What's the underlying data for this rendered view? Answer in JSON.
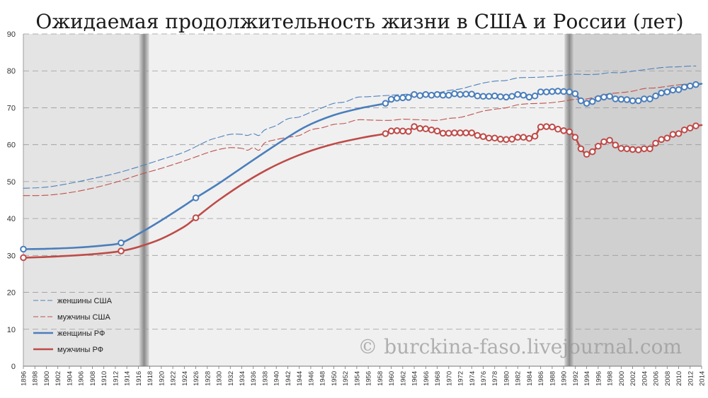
{
  "chart_data": {
    "type": "line",
    "title": "Ожидаемая продолжительность жизни в США и России (лет)",
    "ylim": [
      0,
      90
    ],
    "yticks": [
      "0",
      "10",
      "20",
      "30",
      "40",
      "50",
      "60",
      "70",
      "80",
      "90"
    ],
    "xlim": [
      1896,
      2014
    ],
    "xticks": [
      "1896",
      "1898",
      "1900",
      "1902",
      "1904",
      "1906",
      "1908",
      "1910",
      "1912",
      "1914",
      "1916",
      "1918",
      "1920",
      "1922",
      "1924",
      "1926",
      "1928",
      "1930",
      "1932",
      "1934",
      "1936",
      "1938",
      "1940",
      "1942",
      "1944",
      "1946",
      "1948",
      "1950",
      "1952",
      "1954",
      "1956",
      "1958",
      "1960",
      "1962",
      "1964",
      "1966",
      "1968",
      "1970",
      "1972",
      "1974",
      "1976",
      "1978",
      "1980",
      "1982",
      "1984",
      "1986",
      "1988",
      "1990",
      "1992",
      "1994",
      "1996",
      "1998",
      "2000",
      "2002",
      "2004",
      "2006",
      "2008",
      "2010",
      "2012",
      "2014"
    ],
    "shaded_periods": [
      {
        "from": 1896,
        "to": 1917,
        "shade": "#e4e4e4"
      },
      {
        "from": 1917,
        "to": 1991,
        "shade": "#f0f0f0"
      },
      {
        "from": 1991,
        "to": 2014,
        "shade": "#d0d0d0"
      }
    ],
    "grid": "horizontal dashed",
    "legend_position": "bottom-left",
    "series": [
      {
        "name": "женшины США",
        "color": "#4f81bd",
        "style": "dashed",
        "points": [
          [
            1896,
            48.2
          ],
          [
            1900,
            48.5
          ],
          [
            1904,
            49.5
          ],
          [
            1908,
            50.8
          ],
          [
            1912,
            52.2
          ],
          [
            1916,
            54.0
          ],
          [
            1920,
            56.0
          ],
          [
            1924,
            58.0
          ],
          [
            1928,
            61.0
          ],
          [
            1930,
            62.0
          ],
          [
            1932,
            62.8
          ],
          [
            1934,
            62.8
          ],
          [
            1935,
            62.5
          ],
          [
            1936,
            63.0
          ],
          [
            1937,
            62.5
          ],
          [
            1938,
            64.0
          ],
          [
            1940,
            65.2
          ],
          [
            1942,
            67.0
          ],
          [
            1944,
            67.5
          ],
          [
            1946,
            68.8
          ],
          [
            1948,
            70.0
          ],
          [
            1950,
            71.2
          ],
          [
            1952,
            71.6
          ],
          [
            1954,
            72.8
          ],
          [
            1956,
            73.0
          ],
          [
            1958,
            73.2
          ],
          [
            1960,
            73.4
          ],
          [
            1962,
            73.6
          ],
          [
            1964,
            73.8
          ],
          [
            1966,
            73.9
          ],
          [
            1968,
            74.0
          ],
          [
            1970,
            74.7
          ],
          [
            1972,
            75.1
          ],
          [
            1974,
            75.9
          ],
          [
            1976,
            76.7
          ],
          [
            1978,
            77.2
          ],
          [
            1980,
            77.4
          ],
          [
            1982,
            78.1
          ],
          [
            1984,
            78.2
          ],
          [
            1986,
            78.3
          ],
          [
            1988,
            78.5
          ],
          [
            1990,
            78.8
          ],
          [
            1992,
            79.1
          ],
          [
            1994,
            79.0
          ],
          [
            1996,
            79.1
          ],
          [
            1998,
            79.5
          ],
          [
            2000,
            79.5
          ],
          [
            2002,
            79.9
          ],
          [
            2004,
            80.3
          ],
          [
            2006,
            80.7
          ],
          [
            2008,
            81.0
          ],
          [
            2010,
            81.1
          ],
          [
            2012,
            81.3
          ],
          [
            2013,
            81.3
          ]
        ]
      },
      {
        "name": "мужчины США",
        "color": "#c0504d",
        "style": "dashed",
        "points": [
          [
            1896,
            46.2
          ],
          [
            1900,
            46.3
          ],
          [
            1904,
            47.0
          ],
          [
            1908,
            48.2
          ],
          [
            1912,
            49.8
          ],
          [
            1916,
            51.8
          ],
          [
            1920,
            53.6
          ],
          [
            1924,
            55.6
          ],
          [
            1928,
            57.8
          ],
          [
            1930,
            58.7
          ],
          [
            1932,
            59.2
          ],
          [
            1934,
            59.0
          ],
          [
            1935,
            58.5
          ],
          [
            1936,
            59.2
          ],
          [
            1937,
            58.5
          ],
          [
            1938,
            60.5
          ],
          [
            1940,
            61.4
          ],
          [
            1942,
            62.0
          ],
          [
            1944,
            62.5
          ],
          [
            1946,
            64.0
          ],
          [
            1948,
            64.6
          ],
          [
            1950,
            65.5
          ],
          [
            1952,
            65.8
          ],
          [
            1954,
            66.7
          ],
          [
            1956,
            66.7
          ],
          [
            1958,
            66.6
          ],
          [
            1960,
            66.6
          ],
          [
            1962,
            66.9
          ],
          [
            1964,
            66.8
          ],
          [
            1966,
            66.7
          ],
          [
            1968,
            66.6
          ],
          [
            1970,
            67.1
          ],
          [
            1972,
            67.4
          ],
          [
            1974,
            68.2
          ],
          [
            1976,
            69.1
          ],
          [
            1978,
            69.6
          ],
          [
            1980,
            70.0
          ],
          [
            1982,
            70.8
          ],
          [
            1984,
            71.1
          ],
          [
            1986,
            71.2
          ],
          [
            1988,
            71.4
          ],
          [
            1990,
            71.8
          ],
          [
            1992,
            72.3
          ],
          [
            1994,
            72.4
          ],
          [
            1996,
            73.1
          ],
          [
            1998,
            73.8
          ],
          [
            2000,
            74.1
          ],
          [
            2002,
            74.5
          ],
          [
            2004,
            75.2
          ],
          [
            2006,
            75.4
          ],
          [
            2008,
            75.8
          ],
          [
            2010,
            76.2
          ],
          [
            2012,
            76.4
          ],
          [
            2013,
            76.4
          ]
        ]
      },
      {
        "name": "женщины РФ",
        "color": "#4a7ebb",
        "style": "solid",
        "marker_years": [
          1896,
          1913,
          1926,
          1959,
          1960,
          1961,
          1962,
          1963,
          1964,
          1965,
          1966,
          1967,
          1968,
          1969,
          1970,
          1971,
          1972,
          1973,
          1974,
          1975,
          1976,
          1977,
          1978,
          1979,
          1980,
          1981,
          1982,
          1983,
          1984,
          1985,
          1986,
          1987,
          1988,
          1989,
          1990,
          1991,
          1992,
          1993,
          1994,
          1995,
          1996,
          1997,
          1998,
          1999,
          2000,
          2001,
          2002,
          2003,
          2004,
          2005,
          2006,
          2007,
          2008,
          2009,
          2010,
          2011,
          2012,
          2013
        ],
        "points": [
          [
            1896,
            31.7
          ],
          [
            1900,
            31.8
          ],
          [
            1905,
            32.1
          ],
          [
            1910,
            32.7
          ],
          [
            1913,
            33.4
          ],
          [
            1916,
            35.8
          ],
          [
            1920,
            39.5
          ],
          [
            1924,
            43.5
          ],
          [
            1926,
            45.6
          ],
          [
            1930,
            49.5
          ],
          [
            1935,
            54.8
          ],
          [
            1940,
            60.0
          ],
          [
            1945,
            64.8
          ],
          [
            1950,
            68.0
          ],
          [
            1955,
            70.0
          ],
          [
            1959,
            71.2
          ],
          [
            1960,
            72.3
          ],
          [
            1961,
            72.6
          ],
          [
            1962,
            72.7
          ],
          [
            1963,
            72.8
          ],
          [
            1964,
            73.6
          ],
          [
            1965,
            73.3
          ],
          [
            1966,
            73.6
          ],
          [
            1967,
            73.4
          ],
          [
            1968,
            73.6
          ],
          [
            1969,
            73.4
          ],
          [
            1970,
            73.4
          ],
          [
            1971,
            73.8
          ],
          [
            1972,
            73.6
          ],
          [
            1973,
            73.7
          ],
          [
            1974,
            73.7
          ],
          [
            1975,
            73.2
          ],
          [
            1976,
            73.1
          ],
          [
            1977,
            73.1
          ],
          [
            1978,
            73.2
          ],
          [
            1979,
            73.0
          ],
          [
            1980,
            72.9
          ],
          [
            1981,
            73.1
          ],
          [
            1982,
            73.6
          ],
          [
            1983,
            73.4
          ],
          [
            1984,
            72.9
          ],
          [
            1985,
            73.2
          ],
          [
            1986,
            74.3
          ],
          [
            1987,
            74.3
          ],
          [
            1988,
            74.4
          ],
          [
            1989,
            74.5
          ],
          [
            1990,
            74.4
          ],
          [
            1991,
            74.3
          ],
          [
            1992,
            73.8
          ],
          [
            1993,
            71.9
          ],
          [
            1994,
            71.2
          ],
          [
            1995,
            71.7
          ],
          [
            1996,
            72.5
          ],
          [
            1997,
            72.9
          ],
          [
            1998,
            73.1
          ],
          [
            1999,
            72.4
          ],
          [
            2000,
            72.3
          ],
          [
            2001,
            72.2
          ],
          [
            2002,
            71.9
          ],
          [
            2003,
            71.9
          ],
          [
            2004,
            72.4
          ],
          [
            2005,
            72.4
          ],
          [
            2006,
            73.2
          ],
          [
            2007,
            74.0
          ],
          [
            2008,
            74.3
          ],
          [
            2009,
            74.8
          ],
          [
            2010,
            74.9
          ],
          [
            2011,
            75.6
          ],
          [
            2012,
            75.9
          ],
          [
            2013,
            76.3
          ],
          [
            2014,
            76.5
          ]
        ]
      },
      {
        "name": "мужчины РФ",
        "color": "#be4b48",
        "style": "solid",
        "marker_years": [
          1896,
          1913,
          1926,
          1959,
          1960,
          1961,
          1962,
          1963,
          1964,
          1965,
          1966,
          1967,
          1968,
          1969,
          1970,
          1971,
          1972,
          1973,
          1974,
          1975,
          1976,
          1977,
          1978,
          1979,
          1980,
          1981,
          1982,
          1983,
          1984,
          1985,
          1986,
          1987,
          1988,
          1989,
          1990,
          1991,
          1992,
          1993,
          1994,
          1995,
          1996,
          1997,
          1998,
          1999,
          2000,
          2001,
          2002,
          2003,
          2004,
          2005,
          2006,
          2007,
          2008,
          2009,
          2010,
          2011,
          2012,
          2013
        ],
        "points": [
          [
            1896,
            29.4
          ],
          [
            1900,
            29.6
          ],
          [
            1905,
            30.0
          ],
          [
            1910,
            30.6
          ],
          [
            1913,
            31.2
          ],
          [
            1916,
            32.3
          ],
          [
            1920,
            34.5
          ],
          [
            1924,
            37.8
          ],
          [
            1926,
            40.2
          ],
          [
            1930,
            45.0
          ],
          [
            1935,
            50.2
          ],
          [
            1940,
            54.5
          ],
          [
            1945,
            57.8
          ],
          [
            1950,
            60.2
          ],
          [
            1955,
            61.9
          ],
          [
            1959,
            63.0
          ],
          [
            1960,
            63.7
          ],
          [
            1961,
            63.8
          ],
          [
            1962,
            63.7
          ],
          [
            1963,
            63.6
          ],
          [
            1964,
            64.9
          ],
          [
            1965,
            64.4
          ],
          [
            1966,
            64.3
          ],
          [
            1967,
            64.0
          ],
          [
            1968,
            63.7
          ],
          [
            1969,
            63.1
          ],
          [
            1970,
            63.1
          ],
          [
            1971,
            63.2
          ],
          [
            1972,
            63.2
          ],
          [
            1973,
            63.2
          ],
          [
            1974,
            63.2
          ],
          [
            1975,
            62.5
          ],
          [
            1976,
            62.2
          ],
          [
            1977,
            61.8
          ],
          [
            1978,
            61.8
          ],
          [
            1979,
            61.5
          ],
          [
            1980,
            61.4
          ],
          [
            1981,
            61.5
          ],
          [
            1982,
            62.0
          ],
          [
            1983,
            62.0
          ],
          [
            1984,
            61.7
          ],
          [
            1985,
            62.3
          ],
          [
            1986,
            64.8
          ],
          [
            1987,
            64.9
          ],
          [
            1988,
            64.8
          ],
          [
            1989,
            64.2
          ],
          [
            1990,
            63.8
          ],
          [
            1991,
            63.5
          ],
          [
            1992,
            62.0
          ],
          [
            1993,
            58.9
          ],
          [
            1994,
            57.4
          ],
          [
            1995,
            58.1
          ],
          [
            1996,
            59.6
          ],
          [
            1997,
            60.8
          ],
          [
            1998,
            61.2
          ],
          [
            1999,
            59.9
          ],
          [
            2000,
            59.0
          ],
          [
            2001,
            58.9
          ],
          [
            2002,
            58.7
          ],
          [
            2003,
            58.6
          ],
          [
            2004,
            58.9
          ],
          [
            2005,
            58.9
          ],
          [
            2006,
            60.4
          ],
          [
            2007,
            61.4
          ],
          [
            2008,
            61.8
          ],
          [
            2009,
            62.8
          ],
          [
            2010,
            63.0
          ],
          [
            2011,
            64.0
          ],
          [
            2012,
            64.5
          ],
          [
            2013,
            65.1
          ],
          [
            2014,
            65.3
          ]
        ]
      }
    ],
    "legend": [
      {
        "label": "женшины США",
        "series": 0
      },
      {
        "label": "мужчины США",
        "series": 1
      },
      {
        "label": "женщины РФ",
        "series": 2
      },
      {
        "label": "мужчины РФ",
        "series": 3
      }
    ],
    "watermark": "© burckina-faso.livejournal.com"
  }
}
